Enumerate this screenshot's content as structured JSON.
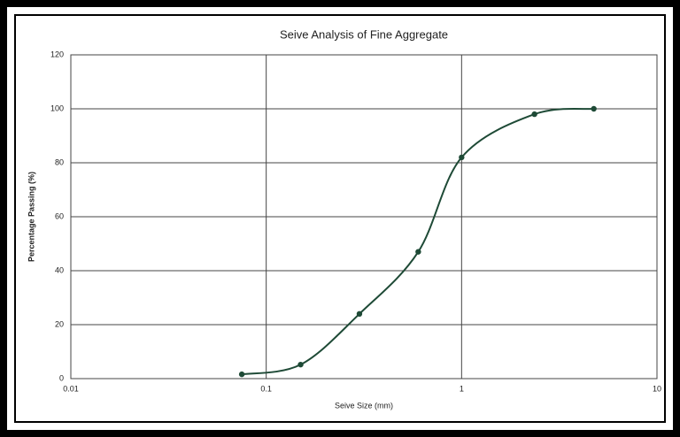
{
  "chart_data": {
    "type": "line",
    "title": "Seive Analysis of Fine Aggregate",
    "x_label": "Seive Size (mm)",
    "y_label": "Percentage Passing (%)",
    "x": [
      0.075,
      0.15,
      0.3,
      0.6,
      1,
      2.36,
      4.75
    ],
    "series": [
      {
        "name": "Percentage Passing",
        "color": "#1e4a36",
        "values": [
          1.6,
          5.2,
          24,
          47,
          82,
          98,
          100
        ]
      }
    ],
    "xscale": "log",
    "xlim": [
      0.01,
      10
    ],
    "xticks": [
      0.01,
      0.1,
      1,
      10
    ],
    "ylim": [
      0,
      120
    ],
    "yticks": [
      0,
      20,
      40,
      60,
      80,
      100,
      120
    ],
    "grid": true
  }
}
